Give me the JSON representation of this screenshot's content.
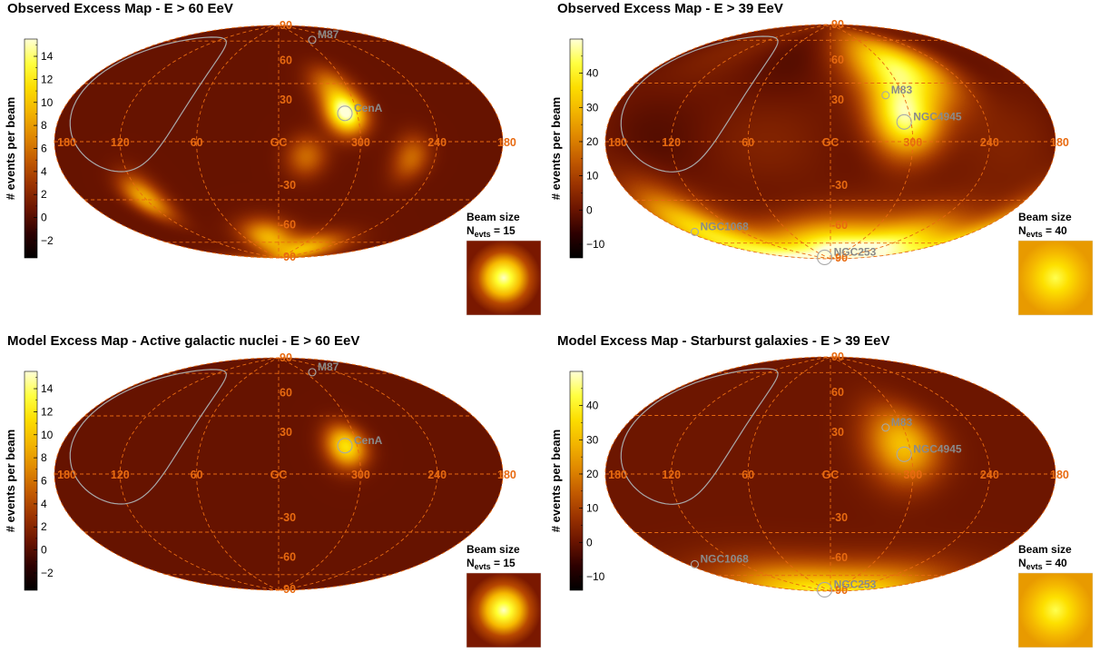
{
  "chart_data": [
    {
      "type": "heatmap",
      "title": "Observed Excess Map - E > 60 EeV",
      "colorbar_label": "# events per beam",
      "colorbar_range": [
        -3.5,
        15.5
      ],
      "colorbar_ticks": [
        "14",
        "12",
        "10",
        "8",
        "6",
        "4",
        "2",
        "0",
        "−2"
      ],
      "colorbar_tick_values": [
        14,
        12,
        10,
        8,
        6,
        4,
        2,
        0,
        -2
      ],
      "projection": "Hammer-Aitoff, galactic coordinates",
      "lat_labels": [
        "90",
        "60",
        "30",
        "-30",
        "-60",
        "-90"
      ],
      "lon_labels": [
        "180",
        "120",
        "60",
        "GC",
        "300",
        "240",
        "180"
      ],
      "sources": [
        {
          "name": "M87",
          "l": 283.8,
          "b": 74.5
        },
        {
          "name": "CenA",
          "l": 309.5,
          "b": 19.4
        }
      ],
      "beam": {
        "label": "Beam size",
        "nevts_text": "= 15",
        "nevts_value": 15
      },
      "hotspots": [
        {
          "l": 309,
          "b": 20,
          "amp": 15
        },
        {
          "l": 315,
          "b": 40,
          "amp": 5
        },
        {
          "l": 20,
          "b": -70,
          "amp": 8
        },
        {
          "l": 120,
          "b": -35,
          "amp": 8
        },
        {
          "l": 280,
          "b": -80,
          "amp": 9
        },
        {
          "l": 260,
          "b": -10,
          "amp": 5
        },
        {
          "l": 340,
          "b": -10,
          "amp": 5
        }
      ]
    },
    {
      "type": "heatmap",
      "title": "Observed Excess Map - E > 39 EeV",
      "colorbar_label": "# events per beam",
      "colorbar_range": [
        -14,
        50
      ],
      "colorbar_ticks": [
        "40",
        "30",
        "20",
        "10",
        "0",
        "−10"
      ],
      "colorbar_tick_values": [
        40,
        30,
        20,
        10,
        0,
        -10
      ],
      "projection": "Hammer-Aitoff, galactic coordinates",
      "lat_labels": [
        "90",
        "60",
        "30",
        "-30",
        "-60",
        "-90"
      ],
      "lon_labels": [
        "180",
        "120",
        "60",
        "GC",
        "300",
        "240",
        "180"
      ],
      "sources": [
        {
          "name": "M83",
          "l": 314.6,
          "b": 32.0
        },
        {
          "name": "NGC4945",
          "l": 305.3,
          "b": 13.3
        },
        {
          "name": "NGC1068",
          "l": 172.1,
          "b": -51.9
        },
        {
          "name": "NGC253",
          "l": 97.4,
          "b": -88.0
        }
      ],
      "beam": {
        "label": "Beam size",
        "nevts_text": "= 40",
        "nevts_value": 40
      },
      "hotspots": [
        {
          "l": 305,
          "b": 15,
          "amp": 45
        },
        {
          "l": 300,
          "b": 55,
          "amp": 25
        },
        {
          "l": 270,
          "b": 45,
          "amp": 20
        },
        {
          "l": 160,
          "b": -50,
          "amp": 30
        },
        {
          "l": 240,
          "b": -70,
          "amp": 35
        },
        {
          "l": 20,
          "b": -80,
          "amp": 40
        }
      ]
    },
    {
      "type": "heatmap",
      "title": "Model Excess Map - Active galactic nuclei - E > 60 EeV",
      "colorbar_label": "# events per beam",
      "colorbar_range": [
        -3.5,
        15.5
      ],
      "colorbar_ticks": [
        "14",
        "12",
        "10",
        "8",
        "6",
        "4",
        "2",
        "0",
        "−2"
      ],
      "colorbar_tick_values": [
        14,
        12,
        10,
        8,
        6,
        4,
        2,
        0,
        -2
      ],
      "projection": "Hammer-Aitoff, galactic coordinates",
      "lat_labels": [
        "90",
        "60",
        "30",
        "-30",
        "-60",
        "-90"
      ],
      "lon_labels": [
        "180",
        "120",
        "60",
        "GC",
        "300",
        "240",
        "180"
      ],
      "sources": [
        {
          "name": "M87",
          "l": 283.8,
          "b": 74.5
        },
        {
          "name": "CenA",
          "l": 309.5,
          "b": 19.4
        }
      ],
      "beam": {
        "label": "Beam size",
        "nevts_text": "= 15",
        "nevts_value": 15
      },
      "hotspots": [
        {
          "l": 309,
          "b": 19,
          "amp": 11
        }
      ]
    },
    {
      "type": "heatmap",
      "title": "Model Excess Map - Starburst galaxies - E > 39 EeV",
      "colorbar_label": "# events per beam",
      "colorbar_range": [
        -14,
        50
      ],
      "colorbar_ticks": [
        "40",
        "30",
        "20",
        "10",
        "0",
        "−10"
      ],
      "colorbar_tick_values": [
        40,
        30,
        20,
        10,
        0,
        -10
      ],
      "projection": "Hammer-Aitoff, galactic coordinates",
      "lat_labels": [
        "90",
        "60",
        "30",
        "-30",
        "-60",
        "-90"
      ],
      "lon_labels": [
        "180",
        "120",
        "60",
        "GC",
        "300",
        "240",
        "180"
      ],
      "sources": [
        {
          "name": "M83",
          "l": 314.6,
          "b": 32.0
        },
        {
          "name": "NGC4945",
          "l": 305.3,
          "b": 13.3
        },
        {
          "name": "NGC1068",
          "l": 172.1,
          "b": -51.9
        },
        {
          "name": "NGC253",
          "l": 97.4,
          "b": -88.0
        }
      ],
      "beam": {
        "label": "Beam size",
        "nevts_text": "= 40",
        "nevts_value": 40
      },
      "hotspots": [
        {
          "l": 305,
          "b": 20,
          "amp": 30
        },
        {
          "l": 100,
          "b": -85,
          "amp": 22
        },
        {
          "l": 240,
          "b": -85,
          "amp": 18
        }
      ]
    }
  ],
  "colors": {
    "gridline": "#e86a10",
    "galactic_curve": "#a8a8a8",
    "source_label": "#8a8a8a",
    "colormap": [
      "#000000",
      "#2d0000",
      "#6a1400",
      "#9a3200",
      "#c25a00",
      "#e08800",
      "#f2b400",
      "#fcdd00",
      "#ffff40",
      "#ffffd8"
    ]
  },
  "axis_labels": {
    "N_main": "N",
    "N_sub": "evts"
  }
}
